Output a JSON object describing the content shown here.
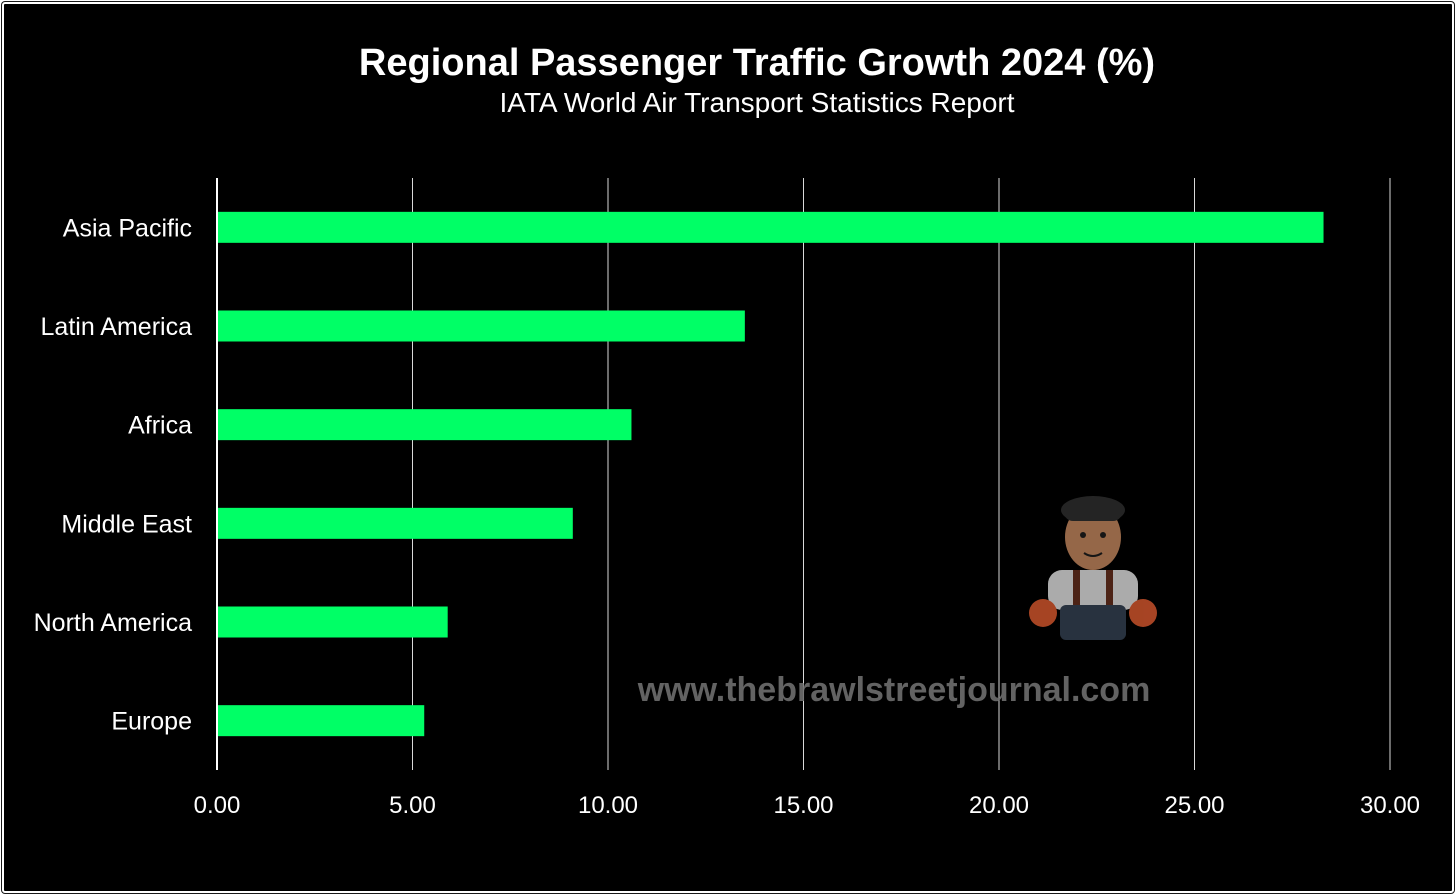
{
  "chart_data": {
    "type": "bar",
    "orientation": "horizontal",
    "title": "Regional Passenger Traffic Growth 2024 (%)",
    "subtitle": "IATA World Air Transport Statistics Report",
    "categories": [
      "Asia Pacific",
      "Latin America",
      "Africa",
      "Middle East",
      "North America",
      "Europe"
    ],
    "values": [
      28.3,
      13.5,
      10.6,
      9.1,
      5.9,
      5.3
    ],
    "xlim": [
      0,
      30
    ],
    "xticks": [
      0,
      5,
      10,
      15,
      20,
      25,
      30
    ],
    "xtick_labels": [
      "0.00",
      "5.00",
      "10.00",
      "15.00",
      "20.00",
      "25.00",
      "30.00"
    ],
    "xlabel": "",
    "ylabel": "",
    "grid": true,
    "legend": "none",
    "bar_color": "#00ff66",
    "background_color": "#000000",
    "grid_color": "#d9d9d9",
    "watermark": "www.thebrawlstreetjournal.com"
  }
}
